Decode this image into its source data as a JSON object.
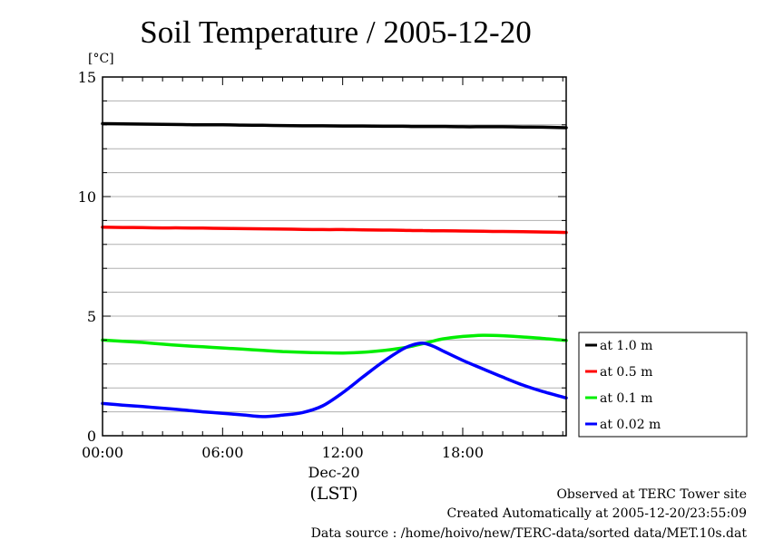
{
  "chart_data": {
    "type": "line",
    "title": "Soil Temperature / 2005-12-20",
    "ylabel": "[°C]",
    "xlabel": "(LST)",
    "date_label": "Dec-20",
    "ylim": [
      0,
      15
    ],
    "xlim": [
      0,
      23.17
    ],
    "yticks": [
      0,
      5,
      10,
      15
    ],
    "ytick_labels": [
      "0",
      "5",
      "10",
      "15"
    ],
    "xticks": [
      0,
      6,
      12,
      18
    ],
    "xtick_labels": [
      "00:00",
      "06:00",
      "12:00",
      "18:00"
    ],
    "grid": true,
    "legend_position": "right",
    "x": [
      0,
      1,
      2,
      3,
      4,
      5,
      6,
      7,
      8,
      9,
      10,
      11,
      12,
      13,
      14,
      15,
      15.5,
      16,
      16.5,
      17,
      18,
      19,
      20,
      21,
      22,
      23.17
    ],
    "series": [
      {
        "name": "at 1.0 m",
        "color": "#000000",
        "values": [
          13.05,
          13.04,
          13.03,
          13.02,
          13.01,
          13.0,
          13.0,
          12.99,
          12.98,
          12.97,
          12.96,
          12.96,
          12.95,
          12.95,
          12.94,
          12.94,
          12.93,
          12.93,
          12.93,
          12.93,
          12.92,
          12.92,
          12.92,
          12.91,
          12.9,
          12.88
        ]
      },
      {
        "name": "at 0.5 m",
        "color": "#ff0000",
        "values": [
          8.72,
          8.71,
          8.7,
          8.69,
          8.69,
          8.68,
          8.67,
          8.66,
          8.65,
          8.64,
          8.63,
          8.62,
          8.62,
          8.61,
          8.6,
          8.59,
          8.58,
          8.58,
          8.57,
          8.57,
          8.56,
          8.55,
          8.54,
          8.53,
          8.52,
          8.5
        ]
      },
      {
        "name": "at 0.1 m",
        "color": "#00ee00",
        "values": [
          4.0,
          3.95,
          3.9,
          3.83,
          3.77,
          3.72,
          3.67,
          3.62,
          3.57,
          3.52,
          3.49,
          3.47,
          3.46,
          3.49,
          3.56,
          3.67,
          3.75,
          3.85,
          3.95,
          4.05,
          4.15,
          4.2,
          4.18,
          4.13,
          4.07,
          3.98
        ]
      },
      {
        "name": "at 0.02 m",
        "color": "#0000ff",
        "values": [
          1.35,
          1.28,
          1.22,
          1.15,
          1.08,
          1.0,
          0.94,
          0.87,
          0.8,
          0.86,
          0.97,
          1.25,
          1.8,
          2.45,
          3.08,
          3.62,
          3.8,
          3.87,
          3.75,
          3.55,
          3.15,
          2.8,
          2.45,
          2.12,
          1.85,
          1.58
        ]
      }
    ]
  },
  "footer": {
    "observed": "Observed at TERC Tower site",
    "created": "Created Automatically at 2005-12-20/23:55:09",
    "source": "Data source : /home/hoivo/new/TERC-data/sorted  data/MET.10s.dat"
  }
}
